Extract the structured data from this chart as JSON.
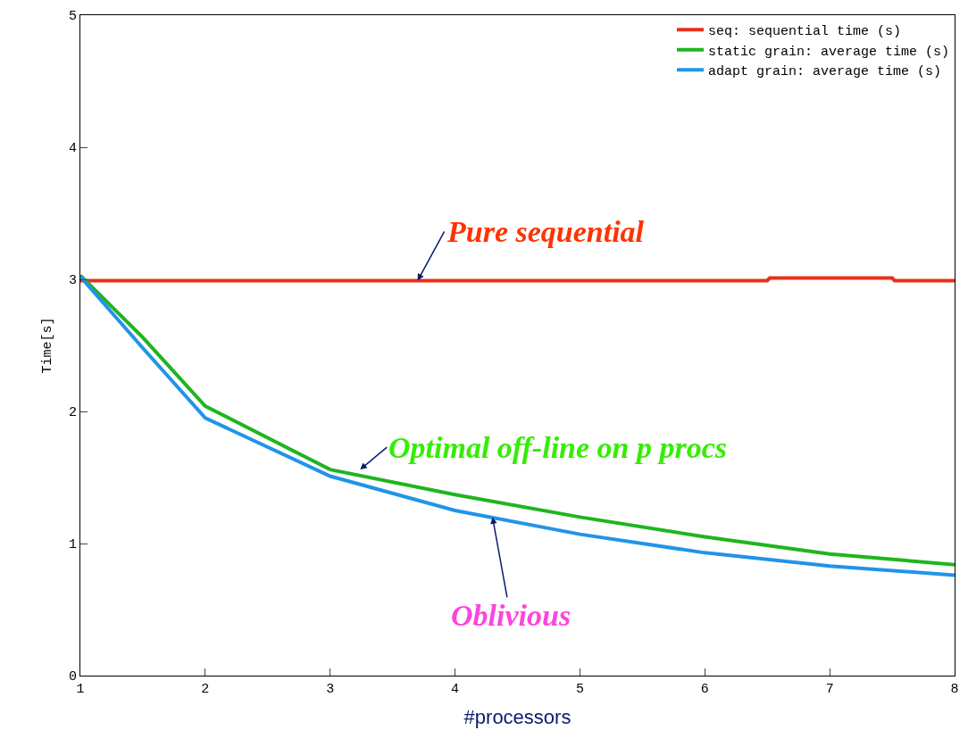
{
  "chart_data": {
    "type": "line",
    "xlabel": "#processors",
    "ylabel": "Time[s]",
    "xlim": [
      1,
      8
    ],
    "xticks": [
      1,
      2,
      3,
      4,
      5,
      6,
      7,
      8
    ],
    "ylim": [
      0,
      5
    ],
    "yticks": [
      0,
      1,
      2,
      3,
      4,
      5
    ],
    "grid": false,
    "legend": "top right",
    "marker": "none",
    "line_style": "solid",
    "series": [
      {
        "name": "seq: sequential time (s)",
        "color": "#e8301c",
        "x": [
          1,
          6.5,
          6.52,
          7.5,
          7.52,
          8
        ],
        "values": [
          2.99,
          2.99,
          3.01,
          3.01,
          2.99,
          2.99
        ]
      },
      {
        "name": "static grain: average time (s)",
        "color": "#1fb51f",
        "x": [
          1,
          1.5,
          2,
          3,
          4,
          5,
          6,
          7,
          8
        ],
        "values": [
          3.03,
          2.56,
          2.04,
          1.56,
          1.37,
          1.2,
          1.05,
          0.92,
          0.84
        ]
      },
      {
        "name": "adapt grain: average time (s)",
        "color": "#2194e8",
        "x": [
          1,
          1.5,
          2,
          3,
          4,
          5,
          6,
          7,
          8
        ],
        "values": [
          3.02,
          2.48,
          1.95,
          1.51,
          1.25,
          1.07,
          0.93,
          0.83,
          0.76
        ]
      }
    ],
    "annotations": [
      {
        "text": "Pure sequential",
        "x": 3.7,
        "y": 2.99
      },
      {
        "text": "Optimal off-line on p procs",
        "x": 3.24,
        "y": 1.56
      },
      {
        "text": "Oblivious",
        "x": 4.3,
        "y": 1.2
      }
    ]
  }
}
